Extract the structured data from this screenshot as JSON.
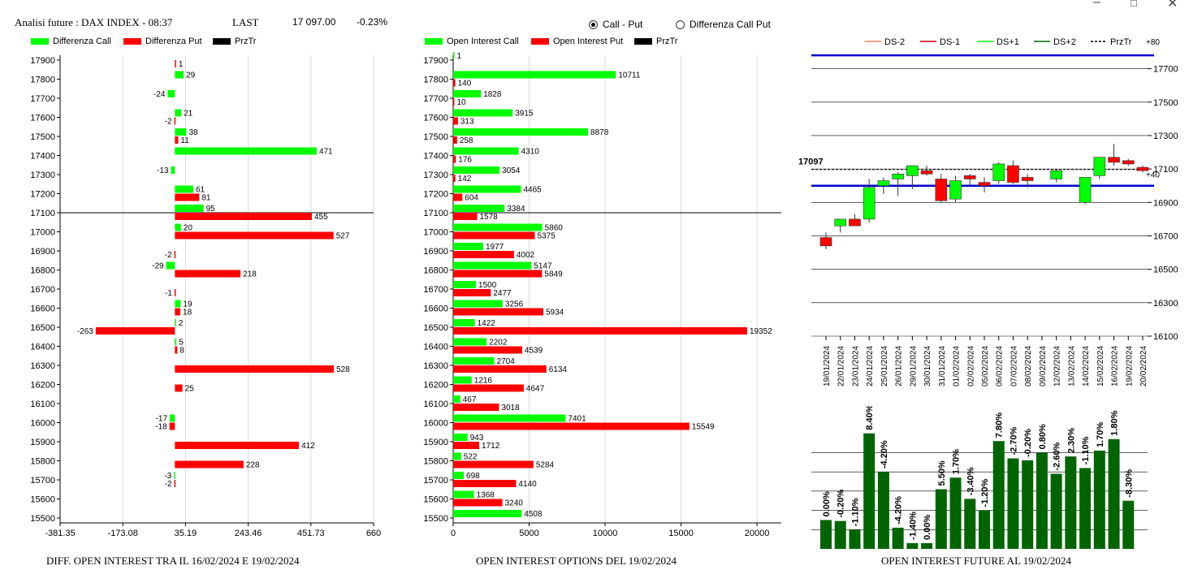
{
  "header": {
    "title": "Analisi future : DAX INDEX - 08:37",
    "last_label": "LAST",
    "last_value": "17 097.00",
    "change": "-0.23%"
  },
  "controls": {
    "radio_call_put": "Call - Put",
    "radio_diff": "Differenza Call Put",
    "selected": "Call - Put"
  },
  "colors": {
    "green": "#00ff00",
    "red": "#ff0000",
    "dark_green": "#006400",
    "blue": "#0000cc"
  },
  "legend1": [
    "Differenza Call",
    "Differenza Put",
    "PrzTr"
  ],
  "legend2": [
    "Open Interest Call",
    "Open Interest Put",
    "PrzTr"
  ],
  "legend3": [
    "DS-2",
    "DS-1",
    "DS+1",
    "DS+2",
    "PrzTr",
    "+80"
  ],
  "captions": {
    "c1": "DIFF. OPEN INTEREST TRA IL 16/02/2024 E 19/02/2024",
    "c2": "OPEN INTEREST OPTIONS DEL 19/02/2024",
    "c3": "OPEN INTEREST FUTURE AL 19/02/2024"
  },
  "chart_data": [
    {
      "type": "bar",
      "orientation": "horizontal",
      "categories": [
        "17900",
        "17800",
        "17700",
        "17600",
        "17500",
        "17400",
        "17300",
        "17200",
        "17100",
        "17000",
        "16900",
        "16800",
        "16700",
        "16600",
        "16500",
        "16400",
        "16300",
        "16200",
        "16100",
        "16000",
        "15900",
        "15800",
        "15700",
        "15600",
        "15500"
      ],
      "series": [
        {
          "name": "Differenza Call",
          "values": [
            null,
            29,
            -24,
            21,
            38,
            471,
            -13,
            61,
            95,
            20,
            null,
            -29,
            null,
            19,
            2,
            5,
            null,
            null,
            null,
            -17,
            null,
            null,
            -3,
            null,
            null
          ]
        },
        {
          "name": "Differenza Put",
          "values": [
            1,
            null,
            null,
            -2,
            11,
            null,
            null,
            81,
            455,
            527,
            -2,
            218,
            -1,
            18,
            -263,
            8,
            528,
            25,
            null,
            -18,
            412,
            228,
            -2,
            null,
            null
          ]
        }
      ],
      "x_ticks": [
        "-381.35",
        "-173.08",
        "35.19",
        "243.46",
        "451.73",
        "660"
      ],
      "xlim": [
        -381.35,
        660
      ],
      "reference_line": "17100",
      "grid": true
    },
    {
      "type": "bar",
      "orientation": "horizontal",
      "categories": [
        "17900",
        "17800",
        "17700",
        "17600",
        "17500",
        "17400",
        "17300",
        "17200",
        "17100",
        "17000",
        "16900",
        "16800",
        "16700",
        "16600",
        "16500",
        "16400",
        "16300",
        "16200",
        "16100",
        "16000",
        "15900",
        "15800",
        "15700",
        "15600",
        "15500"
      ],
      "series": [
        {
          "name": "Open Interest Call",
          "values": [
            1,
            10711,
            1828,
            3915,
            8878,
            4310,
            3054,
            4465,
            3384,
            5860,
            1977,
            5147,
            1500,
            3256,
            1422,
            2202,
            2704,
            1216,
            467,
            7401,
            943,
            522,
            698,
            1368,
            4508
          ]
        },
        {
          "name": "Open Interest Put",
          "values": [
            null,
            140,
            10,
            313,
            258,
            176,
            142,
            604,
            1578,
            5375,
            4002,
            5849,
            2477,
            5934,
            19352,
            4539,
            6134,
            4647,
            3018,
            15549,
            1712,
            5284,
            4140,
            3240,
            null
          ]
        }
      ],
      "x_ticks": [
        "0",
        "5000",
        "10000",
        "15000",
        "20000"
      ],
      "xlim": [
        0,
        21600
      ],
      "reference_line": "17100",
      "grid": true
    },
    {
      "type": "candlestick",
      "dates": [
        "19/01/2024",
        "22/01/2024",
        "23/01/2024",
        "24/01/2024",
        "25/01/2024",
        "26/01/2024",
        "29/01/2024",
        "30/01/2024",
        "31/01/2024",
        "01/02/2024",
        "02/02/2024",
        "05/02/2024",
        "06/02/2024",
        "07/02/2024",
        "08/02/2024",
        "09/02/2024",
        "12/02/2024",
        "13/02/2024",
        "14/02/2024",
        "15/02/2024",
        "16/02/2024",
        "19/02/2024",
        "20/02/2024"
      ],
      "candles": [
        [
          16690,
          16720,
          16620,
          16640
        ],
        [
          16760,
          16800,
          16720,
          16800
        ],
        [
          16800,
          16830,
          16760,
          16760
        ],
        [
          16800,
          17040,
          16780,
          16990
        ],
        [
          17000,
          17050,
          16950,
          17030
        ],
        [
          17040,
          17080,
          16940,
          17070
        ],
        [
          17060,
          17120,
          16980,
          17120
        ],
        [
          17090,
          17120,
          17060,
          17070
        ],
        [
          17040,
          17070,
          16900,
          16910
        ],
        [
          16920,
          17060,
          16900,
          17030
        ],
        [
          17060,
          17070,
          17000,
          17040
        ],
        [
          17020,
          17050,
          16960,
          17000
        ],
        [
          17030,
          17140,
          17010,
          17130
        ],
        [
          17120,
          17150,
          17010,
          17020
        ],
        [
          17050,
          17070,
          16990,
          17030
        ],
        [
          null,
          null,
          null,
          null
        ],
        [
          17040,
          17100,
          17020,
          17090
        ],
        [
          null,
          null,
          null,
          null
        ],
        [
          16900,
          17050,
          16890,
          17050
        ],
        [
          17060,
          17170,
          17040,
          17170
        ],
        [
          17170,
          17250,
          17120,
          17140
        ],
        [
          17150,
          17160,
          17120,
          17130
        ],
        [
          17110,
          17120,
          17080,
          17090
        ]
      ],
      "y_ticks": [
        "17700",
        "17500",
        "17300",
        "17100",
        "16900",
        "16700",
        "16500",
        "16300",
        "16100"
      ],
      "ylim": [
        16100,
        17800
      ],
      "price_label": "17097",
      "right_labels": [
        "+80",
        "+40"
      ],
      "blue_lines": [
        17780,
        17000
      ],
      "przTr": 17097
    },
    {
      "type": "bar",
      "categories": [
        "19/01/2024",
        "22/01/2024",
        "23/01/2024",
        "24/01/2024",
        "25/01/2024",
        "26/01/2024",
        "29/01/2024",
        "30/01/2024",
        "31/01/2024",
        "01/02/2024",
        "02/02/2024",
        "05/02/2024",
        "06/02/2024",
        "07/02/2024",
        "08/02/2024",
        "09/02/2024",
        "12/02/2024",
        "13/02/2024",
        "14/02/2024",
        "15/02/2024",
        "16/02/2024",
        "19/02/2024",
        "20/02/2024"
      ],
      "values": [
        150,
        145,
        100,
        600,
        400,
        110,
        30,
        30,
        310,
        370,
        260,
        200,
        560,
        470,
        460,
        500,
        390,
        480,
        420,
        510,
        570,
        250,
        null
      ],
      "labels": [
        "0.00%",
        "-0.20%",
        "-1.10%",
        "8.40%",
        "-4.20%",
        "-4.20%",
        "-1.40%",
        "0.00%",
        "5.50%",
        "1.70%",
        "-3.40%",
        "-1.20%",
        "7.80%",
        "-2.70%",
        "-0.20%",
        "0.80%",
        "-2.60%",
        "2.30%",
        "-1.10%",
        "1.70%",
        "1.80%",
        "-8.30%",
        ""
      ],
      "ylim": [
        0,
        700
      ]
    }
  ]
}
